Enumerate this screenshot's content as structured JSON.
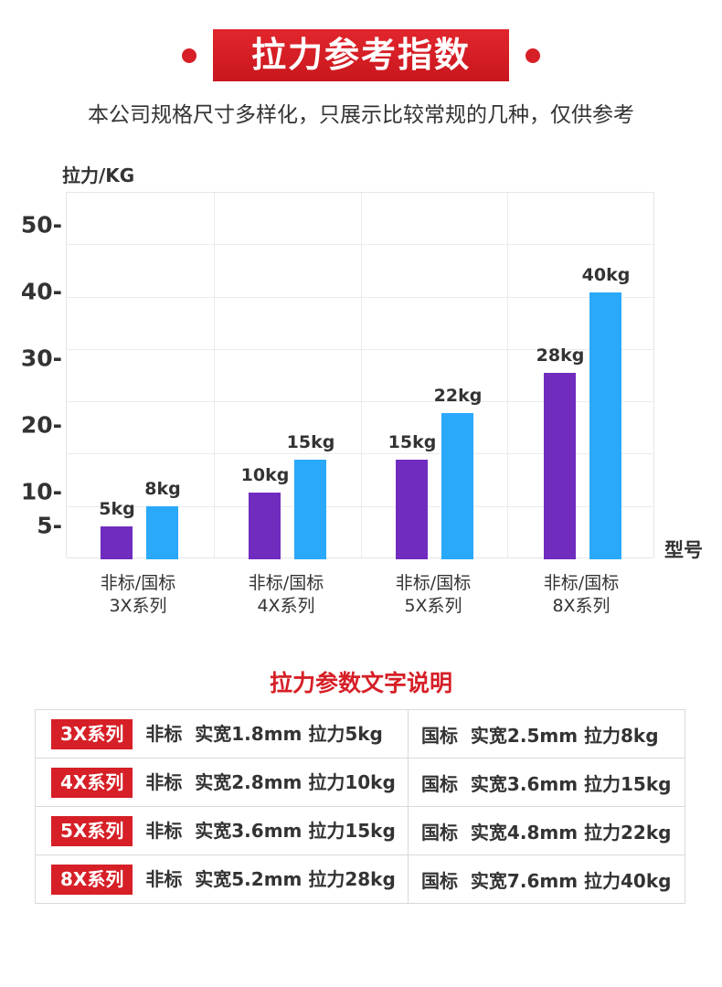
{
  "header": {
    "title": "拉力参考指数",
    "subtitle": "本公司规格尺寸多样化，只展示比较常规的几种，仅供参考"
  },
  "chart_data": {
    "type": "bar",
    "ylabel": "拉力/KG",
    "xlabel": "型号",
    "categories": [
      [
        "非标/国标",
        "3X系列"
      ],
      [
        "非标/国标",
        "4X系列"
      ],
      [
        "非标/国标",
        "5X系列"
      ],
      [
        "非标/国标",
        "8X系列"
      ]
    ],
    "series": [
      {
        "name": "非标",
        "color": "#6f2cbf",
        "values": [
          5,
          10,
          15,
          28
        ],
        "labels": [
          "5kg",
          "10kg",
          "15kg",
          "28kg"
        ]
      },
      {
        "name": "国标",
        "color": "#2aa8fa",
        "values": [
          8,
          15,
          22,
          40
        ],
        "labels": [
          "8kg",
          "15kg",
          "22kg",
          "40kg"
        ]
      }
    ],
    "yticks": [
      5,
      10,
      20,
      30,
      40,
      50
    ],
    "ytick_labels": [
      "5-",
      "10-",
      "20-",
      "30-",
      "40-",
      "50-"
    ],
    "ylim": [
      0,
      55
    ],
    "grid": true
  },
  "section_title": "拉力参数文字说明",
  "table": [
    {
      "series": "3X系列",
      "left": "非标  实宽1.8mm 拉力5kg",
      "right": "国标  实宽2.5mm 拉力8kg"
    },
    {
      "series": "4X系列",
      "left": "非标  实宽2.8mm 拉力10kg",
      "right": "国标  实宽3.6mm 拉力15kg"
    },
    {
      "series": "5X系列",
      "left": "非标  实宽3.6mm 拉力15kg",
      "right": "国标  实宽4.8mm 拉力22kg"
    },
    {
      "series": "8X系列",
      "left": "非标  实宽5.2mm 拉力28kg",
      "right": "国标  实宽7.6mm 拉力40kg"
    }
  ]
}
